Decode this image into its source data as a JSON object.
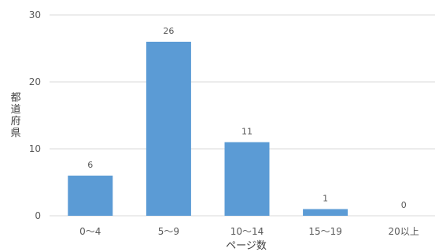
{
  "chart_data": {
    "type": "bar",
    "categories": [
      "0〜4",
      "5〜9",
      "10〜14",
      "15〜19",
      "20以上"
    ],
    "values": [
      6,
      26,
      11,
      1,
      0
    ],
    "data_labels": [
      "6",
      "26",
      "11",
      "1",
      "0"
    ],
    "xlabel": "ページ数",
    "ylabel": "都道府県",
    "ylim": [
      0,
      30
    ],
    "yticks": [
      0,
      10,
      20,
      30
    ],
    "ytick_labels": [
      "0",
      "10",
      "20",
      "30"
    ],
    "grid": true,
    "colors": {
      "bar": "#5b9bd5",
      "grid": "#d9d9d9",
      "text": "#595959"
    }
  }
}
